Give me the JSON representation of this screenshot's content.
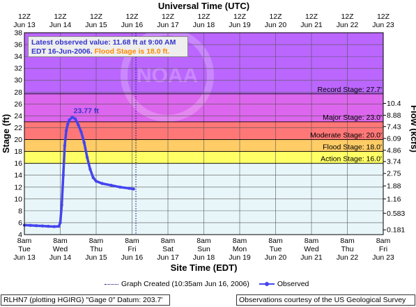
{
  "chart_data": {
    "type": "line",
    "title": "Universal Time (UTC)",
    "xlabel": "Site Time (EDT)",
    "ylabel_left": "Stage (ft)",
    "ylabel_right": "Flow (kcfs)",
    "x_start": "2006-06-13 08:00 EDT",
    "x_end": "2006-06-23 08:00 EDT",
    "ylim": [
      4,
      38
    ],
    "y_ticks": [
      4,
      6,
      8,
      10,
      12,
      14,
      16,
      18,
      20,
      22,
      24,
      26,
      28,
      30,
      32,
      34,
      36,
      38
    ],
    "bottom_ticks": [
      {
        "time": "8am",
        "day": "Tue",
        "date": "Jun 13"
      },
      {
        "time": "8am",
        "day": "Wed",
        "date": "Jun 14"
      },
      {
        "time": "8am",
        "day": "Thu",
        "date": "Jun 15"
      },
      {
        "time": "8am",
        "day": "Fri",
        "date": "Jun 16"
      },
      {
        "time": "8am",
        "day": "Sat",
        "date": "Jun 17"
      },
      {
        "time": "8am",
        "day": "Sun",
        "date": "Jun 18"
      },
      {
        "time": "8am",
        "day": "Mon",
        "date": "Jun 19"
      },
      {
        "time": "8am",
        "day": "Tue",
        "date": "Jun 20"
      },
      {
        "time": "8am",
        "day": "Wed",
        "date": "Jun 21"
      },
      {
        "time": "8am",
        "day": "Thu",
        "date": "Jun 22"
      },
      {
        "time": "8am",
        "day": "Fri",
        "date": "Jun 23"
      }
    ],
    "top_ticks": [
      {
        "time": "12Z",
        "date": "Jun 13"
      },
      {
        "time": "12Z",
        "date": "Jun 14"
      },
      {
        "time": "12Z",
        "date": "Jun 15"
      },
      {
        "time": "12Z",
        "date": "Jun 16"
      },
      {
        "time": "12Z",
        "date": "Jun 17"
      },
      {
        "time": "12Z",
        "date": "Jun 18"
      },
      {
        "time": "12Z",
        "date": "Jun 19"
      },
      {
        "time": "12Z",
        "date": "Jun 20"
      },
      {
        "time": "12Z",
        "date": "Jun 21"
      },
      {
        "time": "12Z",
        "date": "Jun 22"
      },
      {
        "time": "12Z",
        "date": "Jun 23"
      }
    ],
    "flow_ticks": [
      {
        "stage": 4.8,
        "flow": "0.181"
      },
      {
        "stage": 7.6,
        "flow": "0.583"
      },
      {
        "stage": 10.0,
        "flow": "1.16"
      },
      {
        "stage": 12.2,
        "flow": "1.88"
      },
      {
        "stage": 14.3,
        "flow": "2.75"
      },
      {
        "stage": 16.3,
        "flow": "3.74"
      },
      {
        "stage": 18.2,
        "flow": "4.86"
      },
      {
        "stage": 20.2,
        "flow": "6.09"
      },
      {
        "stage": 22.2,
        "flow": "7.43"
      },
      {
        "stage": 24.1,
        "flow": "8.88"
      },
      {
        "stage": 26.1,
        "flow": "10.4"
      }
    ],
    "zones": [
      {
        "from": 16.0,
        "to": 18.0,
        "color": "#ffff66"
      },
      {
        "from": 18.0,
        "to": 20.0,
        "color": "#ffcc66"
      },
      {
        "from": 20.0,
        "to": 23.0,
        "color": "#ff7777"
      },
      {
        "from": 23.0,
        "to": 27.7,
        "color": "#dd66ee"
      },
      {
        "from": 27.7,
        "to": 38.0,
        "color": "#bb66ff"
      }
    ],
    "stage_lines": [
      {
        "label": "Record Stage: 27.7'",
        "value": 27.7
      },
      {
        "label": "Major Stage: 23.0'",
        "value": 23.0
      },
      {
        "label": "Moderate Stage: 20.0'",
        "value": 20.0
      },
      {
        "label": "Flood Stage: 18.0'",
        "value": 18.0
      },
      {
        "label": "Action Stage: 16.0'",
        "value": 16.0
      }
    ],
    "graph_created": "2006-06-16 10:35 EDT",
    "series": [
      {
        "name": "Observed",
        "color": "#4444ee",
        "points": [
          [
            "2006-06-13 08:00",
            5.6
          ],
          [
            "2006-06-13 12:00",
            5.55
          ],
          [
            "2006-06-13 16:00",
            5.5
          ],
          [
            "2006-06-13 20:00",
            5.45
          ],
          [
            "2006-06-14 00:00",
            5.4
          ],
          [
            "2006-06-14 04:00",
            5.35
          ],
          [
            "2006-06-14 07:00",
            5.4
          ],
          [
            "2006-06-14 08:00",
            6.0
          ],
          [
            "2006-06-14 09:00",
            9.0
          ],
          [
            "2006-06-14 10:00",
            14.0
          ],
          [
            "2006-06-14 11:00",
            19.0
          ],
          [
            "2006-06-14 12:00",
            21.5
          ],
          [
            "2006-06-14 13:00",
            22.6
          ],
          [
            "2006-06-14 14:00",
            23.3
          ],
          [
            "2006-06-14 16:00",
            23.77
          ],
          [
            "2006-06-14 18:00",
            23.5
          ],
          [
            "2006-06-14 20:00",
            22.5
          ],
          [
            "2006-06-14 22:00",
            21.3
          ],
          [
            "2006-06-15 00:00",
            19.5
          ],
          [
            "2006-06-15 02:00",
            17.0
          ],
          [
            "2006-06-15 04:00",
            15.0
          ],
          [
            "2006-06-15 06:00",
            13.6
          ],
          [
            "2006-06-15 08:00",
            13.0
          ],
          [
            "2006-06-15 12:00",
            12.6
          ],
          [
            "2006-06-15 18:00",
            12.3
          ],
          [
            "2006-06-16 00:00",
            12.0
          ],
          [
            "2006-06-16 06:00",
            11.8
          ],
          [
            "2006-06-16 09:00",
            11.68
          ]
        ]
      }
    ],
    "peak_label": "23.77 ft",
    "peak_point": [
      "2006-06-14 16:00",
      23.77
    ]
  },
  "info_box": {
    "line1": "Latest observed value: 11.68 ft at 9:00 AM",
    "line2_prefix": "EDT 16-Jun-2006.",
    "line2_flood": "Flood Stage is 18.0 ft."
  },
  "legend": {
    "graph_created": "Graph Created (10:35am Jun 16, 2006)",
    "observed": "Observed"
  },
  "footer": {
    "left": "RLHN7 (plotting HGIRG)  \"Gage 0\" Datum: 203.7'",
    "right": "Observations courtesy of the  US Geological Survey"
  },
  "watermark": "NOAA"
}
